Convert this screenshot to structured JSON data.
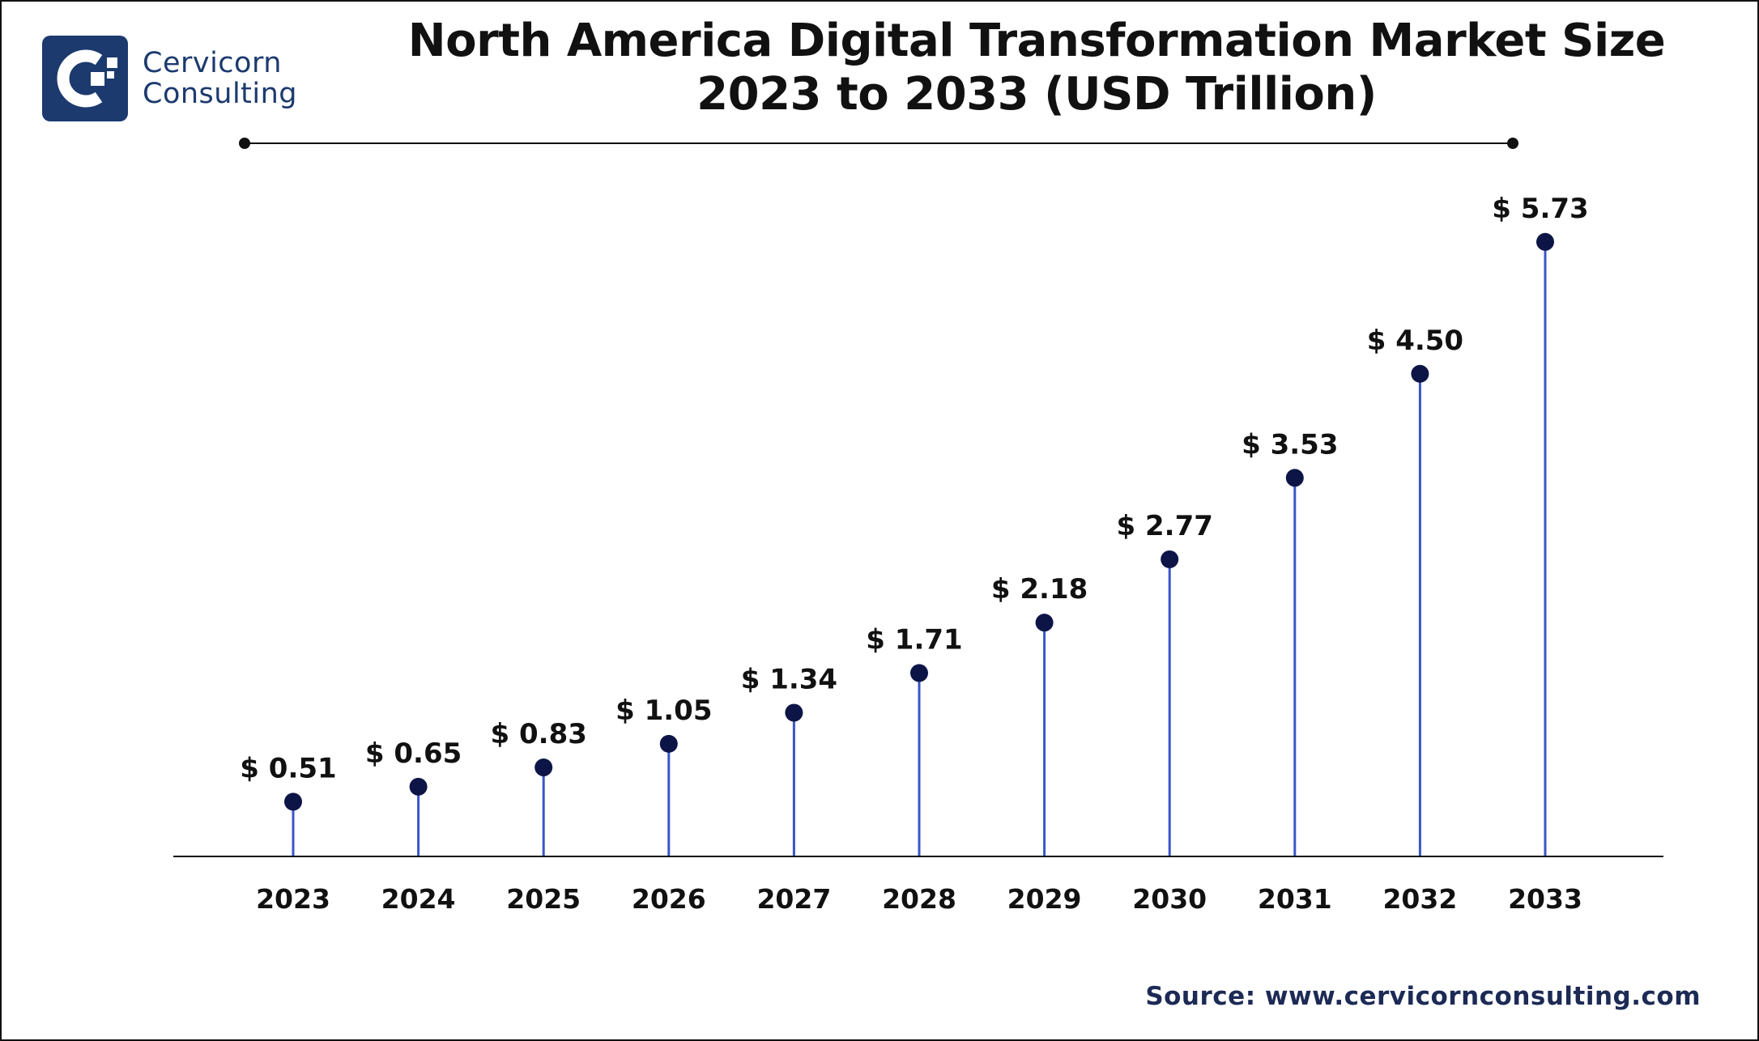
{
  "brand": {
    "name_line1": "Cervicorn",
    "name_line2": "Consulting"
  },
  "colors": {
    "stem": "#3b55c9",
    "marker": "#0d1547",
    "axis": "#111111",
    "text": "#111111",
    "logo": "#1c3a6e",
    "source": "#1c2a55"
  },
  "source_text": "Source: www.cervicornconsulting.com",
  "chart_data": {
    "type": "lollipop",
    "title_line1": "North America Digital Transformation Market Size",
    "title_line2": "2023 to 2033 (USD Trillion)",
    "categories": [
      "2023",
      "2024",
      "2025",
      "2026",
      "2027",
      "2028",
      "2029",
      "2030",
      "2031",
      "2032",
      "2033"
    ],
    "values": [
      0.51,
      0.65,
      0.83,
      1.05,
      1.34,
      1.71,
      2.18,
      2.77,
      3.53,
      4.5,
      5.73
    ],
    "labels": [
      "$ 0.51",
      "$ 0.65",
      "$ 0.83",
      "$ 1.05",
      "$ 1.34",
      "$ 1.71",
      "$ 2.18",
      "$ 2.77",
      "$ 3.53",
      "$ 4.50",
      "$ 5.73"
    ],
    "xlabel": "",
    "ylabel": "",
    "ylim": [
      0,
      6.4
    ],
    "grid": false,
    "legend": "none"
  }
}
